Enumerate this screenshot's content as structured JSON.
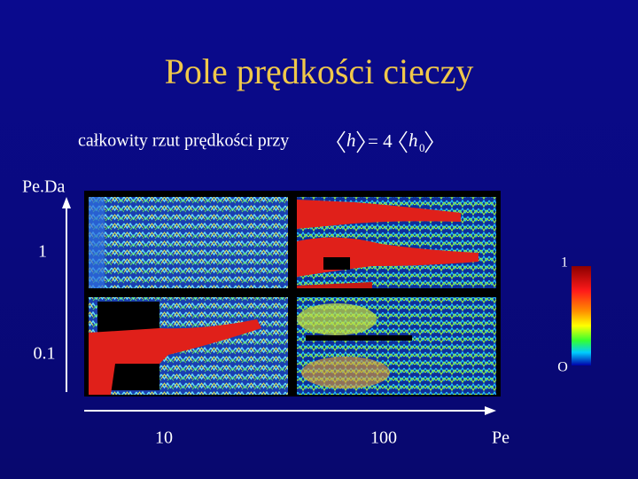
{
  "title": "Pole prędkości cieczy",
  "subtitle": {
    "text": "całkowity rzut prędkości przy",
    "formula": {
      "left": "h",
      "operator": "= 4",
      "right": "h",
      "subscript": "0"
    }
  },
  "y_axis": {
    "label": "Pe.Da",
    "ticks": [
      "1",
      "0.1"
    ]
  },
  "x_axis": {
    "label": "Pe",
    "ticks": [
      "10",
      "100"
    ]
  },
  "colorbar": {
    "top": "1",
    "bottom": "O"
  }
}
